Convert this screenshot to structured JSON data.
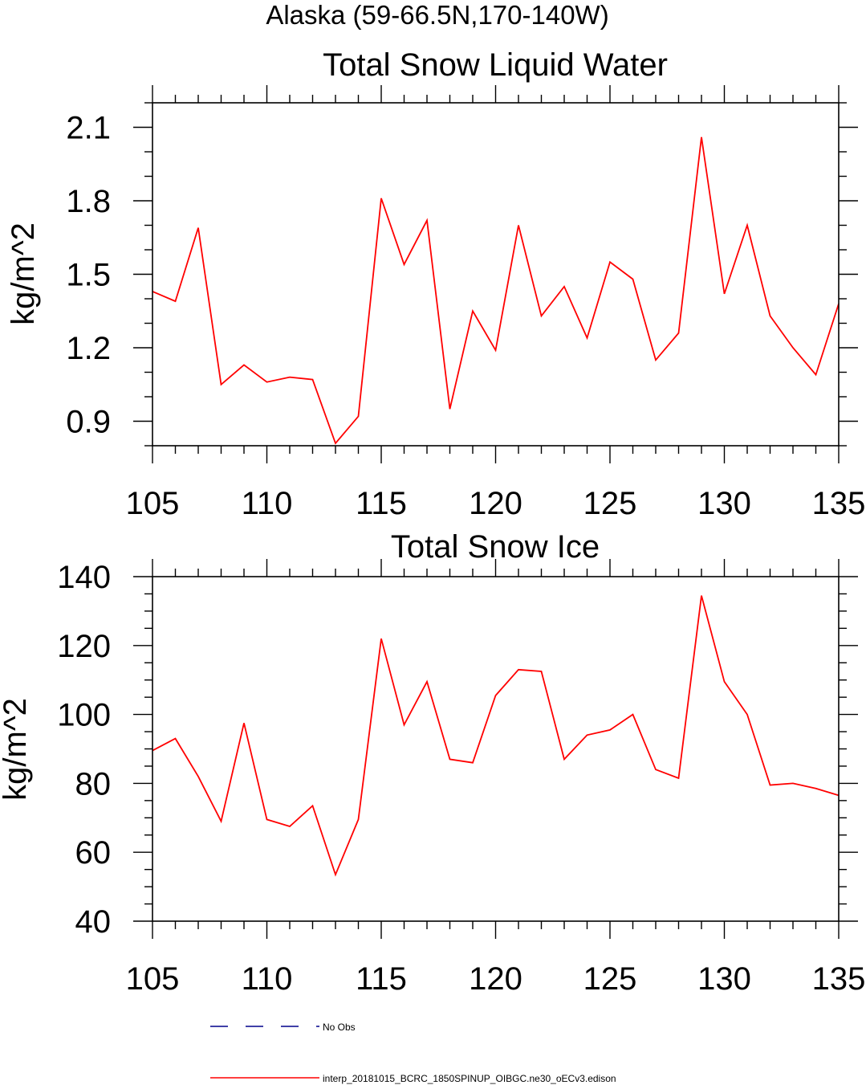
{
  "figure": {
    "supertitle": "Alaska (59-66.5N,170-140W)"
  },
  "chart_data": [
    {
      "type": "line",
      "title": "Total Snow Liquid Water",
      "xlabel": "",
      "ylabel": "kg/m^2",
      "xlim": [
        105,
        135
      ],
      "ylim": [
        0.8,
        2.2
      ],
      "xticks": [
        105,
        110,
        115,
        120,
        125,
        130,
        135
      ],
      "yticks": [
        0.9,
        1.2,
        1.5,
        1.8,
        2.1
      ],
      "ytick_labels": [
        "0.9",
        "1.2",
        "1.5",
        "1.8",
        "2.1"
      ],
      "ytick_minor_step": 0.1,
      "x": [
        105,
        106,
        107,
        108,
        109,
        110,
        111,
        112,
        113,
        114,
        115,
        116,
        117,
        118,
        119,
        120,
        121,
        122,
        123,
        124,
        125,
        126,
        127,
        128,
        129,
        130,
        131,
        132,
        133,
        134,
        135
      ],
      "series": [
        {
          "name": "interp_20181015_BCRC_1850SPINUP_OIBGC.ne30_oECv3.edison",
          "color": "#ff0000",
          "values": [
            1.43,
            1.39,
            1.69,
            1.05,
            1.13,
            1.06,
            1.08,
            1.07,
            0.81,
            0.92,
            1.81,
            1.54,
            1.72,
            0.95,
            1.35,
            1.19,
            1.7,
            1.33,
            1.45,
            1.24,
            1.55,
            1.48,
            1.15,
            1.26,
            2.06,
            1.42,
            1.7,
            1.33,
            1.2,
            1.09,
            1.38
          ]
        }
      ]
    },
    {
      "type": "line",
      "title": "Total Snow Ice",
      "xlabel": "",
      "ylabel": "kg/m^2",
      "xlim": [
        105,
        135
      ],
      "ylim": [
        40,
        140
      ],
      "xticks": [
        105,
        110,
        115,
        120,
        125,
        130,
        135
      ],
      "yticks": [
        40,
        60,
        80,
        100,
        120,
        140
      ],
      "ytick_labels": [
        "40",
        "60",
        "80",
        "100",
        "120",
        "140"
      ],
      "ytick_minor_step": 5,
      "x": [
        105,
        106,
        107,
        108,
        109,
        110,
        111,
        112,
        113,
        114,
        115,
        116,
        117,
        118,
        119,
        120,
        121,
        122,
        123,
        124,
        125,
        126,
        127,
        128,
        129,
        130,
        131,
        132,
        133,
        134,
        135
      ],
      "series": [
        {
          "name": "interp_20181015_BCRC_1850SPINUP_OIBGC.ne30_oECv3.edison",
          "color": "#ff0000",
          "values": [
            89.5,
            93,
            82,
            69,
            97.5,
            69.5,
            67.5,
            73.5,
            53.5,
            69.5,
            122,
            97,
            109.5,
            87,
            86,
            105.5,
            113,
            112.5,
            87,
            94,
            95.5,
            100,
            84,
            81.5,
            134.5,
            109.5,
            100,
            79.5,
            80,
            78.5,
            76.5
          ]
        }
      ]
    }
  ],
  "legend": {
    "placement": "bottom",
    "entries": [
      {
        "label": "No Obs",
        "color": "#00008b",
        "style": "dashed"
      },
      {
        "label": "interp_20181015_BCRC_1850SPINUP_OIBGC.ne30_oECv3.edison",
        "color": "#ff0000",
        "style": "solid"
      }
    ]
  }
}
